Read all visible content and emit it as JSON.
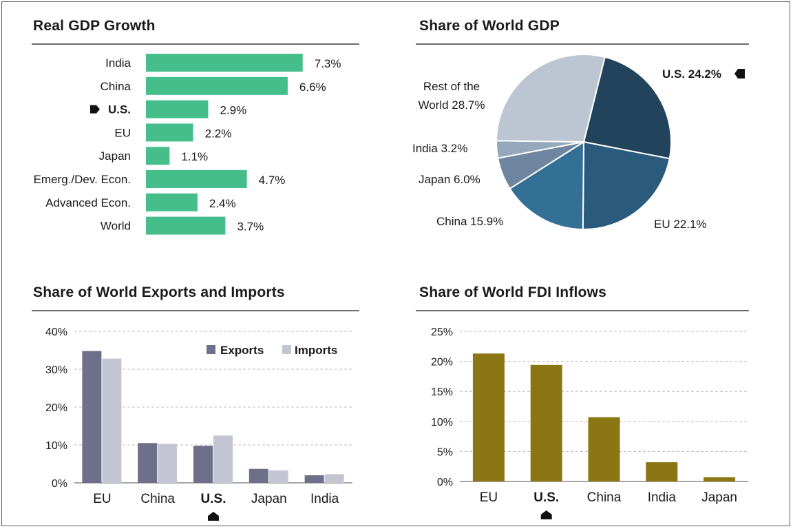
{
  "colors": {
    "gdp_bar": "#45be8c",
    "pie": [
      "#22435c",
      "#2a5a7c",
      "#346f96",
      "#6e86a0",
      "#95a7ba",
      "#bcc5d2"
    ],
    "exports": "#6e7089",
    "imports": "#c3c5d3",
    "fdi": "#8a7613",
    "highlight_marker": "#111111"
  },
  "chart_data": [
    {
      "type": "bar",
      "orientation": "horizontal",
      "title": "Real GDP Growth",
      "categories": [
        "India",
        "China",
        "U.S.",
        "EU",
        "Japan",
        "Emerg./Dev. Econ.",
        "Advanced Econ.",
        "World"
      ],
      "values": [
        7.3,
        6.6,
        2.9,
        2.2,
        1.1,
        4.7,
        2.4,
        3.7
      ],
      "value_labels": [
        "7.3%",
        "6.6%",
        "2.9%",
        "2.2%",
        "1.1%",
        "4.7%",
        "2.4%",
        "3.7%"
      ],
      "highlight": "U.S.",
      "xlim": [
        0,
        8
      ],
      "grid": false,
      "legend": "none"
    },
    {
      "type": "pie",
      "title": "Share of World GDP",
      "slices": [
        {
          "label": "U.S. 24.2%",
          "value": 24.2,
          "highlight": true
        },
        {
          "label": "EU 22.1%",
          "value": 22.1
        },
        {
          "label": "China 15.9%",
          "value": 15.9
        },
        {
          "label": "Japan 6.0%",
          "value": 6.0
        },
        {
          "label": "India 3.2%",
          "value": 3.2
        },
        {
          "label_lines": [
            "Rest of the",
            "World 28.7%"
          ],
          "value": 28.7
        }
      ],
      "legend": "none"
    },
    {
      "type": "bar",
      "title": "Share of World Exports and Imports",
      "categories": [
        "EU",
        "China",
        "U.S.",
        "Japan",
        "India"
      ],
      "series": [
        {
          "name": "Exports",
          "values": [
            34.8,
            10.5,
            9.8,
            3.7,
            2.0
          ]
        },
        {
          "name": "Imports",
          "values": [
            32.8,
            10.3,
            12.5,
            3.3,
            2.3
          ]
        }
      ],
      "highlight": "U.S.",
      "ylim": [
        0,
        40
      ],
      "yticks": [
        "0%",
        "10%",
        "20%",
        "30%",
        "40%"
      ],
      "grid": true,
      "legend": "top-right"
    },
    {
      "type": "bar",
      "title": "Share of World FDI Inflows",
      "categories": [
        "EU",
        "U.S.",
        "China",
        "India",
        "Japan"
      ],
      "values": [
        21.3,
        19.4,
        10.7,
        3.2,
        0.7
      ],
      "highlight": "U.S.",
      "ylim": [
        0,
        25
      ],
      "yticks": [
        "0%",
        "5%",
        "10%",
        "15%",
        "20%",
        "25%"
      ],
      "grid": true,
      "legend": "none"
    }
  ]
}
